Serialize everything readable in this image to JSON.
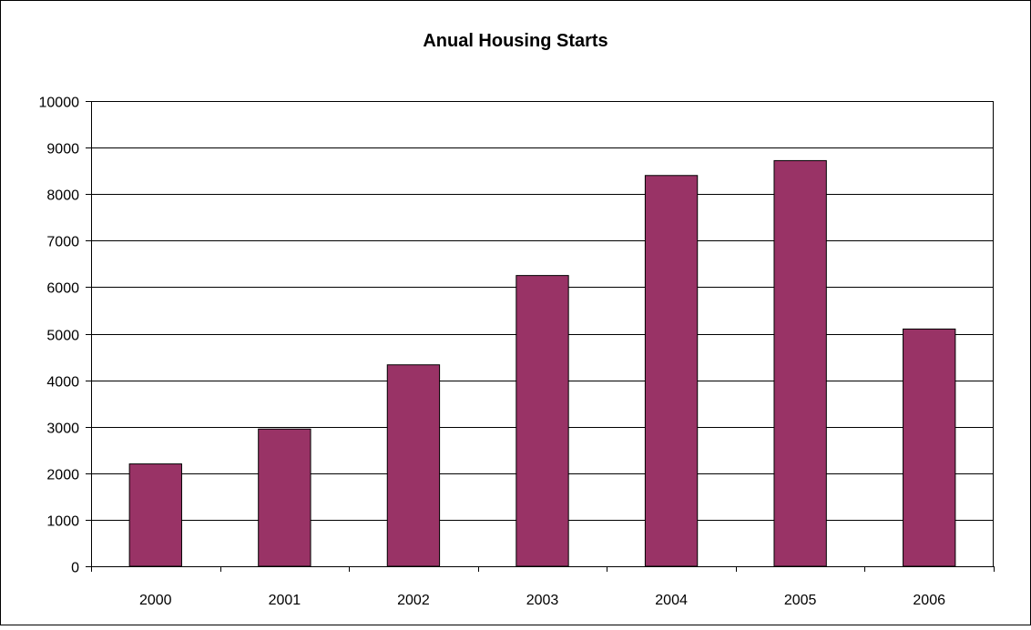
{
  "chart_data": {
    "type": "bar",
    "title": "Anual Housing Starts",
    "xlabel": "",
    "ylabel": "",
    "categories": [
      "2000",
      "2001",
      "2002",
      "2003",
      "2004",
      "2005",
      "2006"
    ],
    "series": [
      {
        "values": [
          2200,
          2950,
          4330,
          6250,
          8400,
          8720,
          5100
        ]
      }
    ],
    "ylim": [
      0,
      10000
    ],
    "yticks": [
      0,
      1000,
      2000,
      3000,
      4000,
      5000,
      6000,
      7000,
      8000,
      9000,
      10000
    ],
    "grid": true,
    "legend": "none",
    "colors": {
      "bar": "#993366",
      "bar_stroke": "#000000",
      "gridline": "#000000",
      "border": "#000000"
    }
  }
}
